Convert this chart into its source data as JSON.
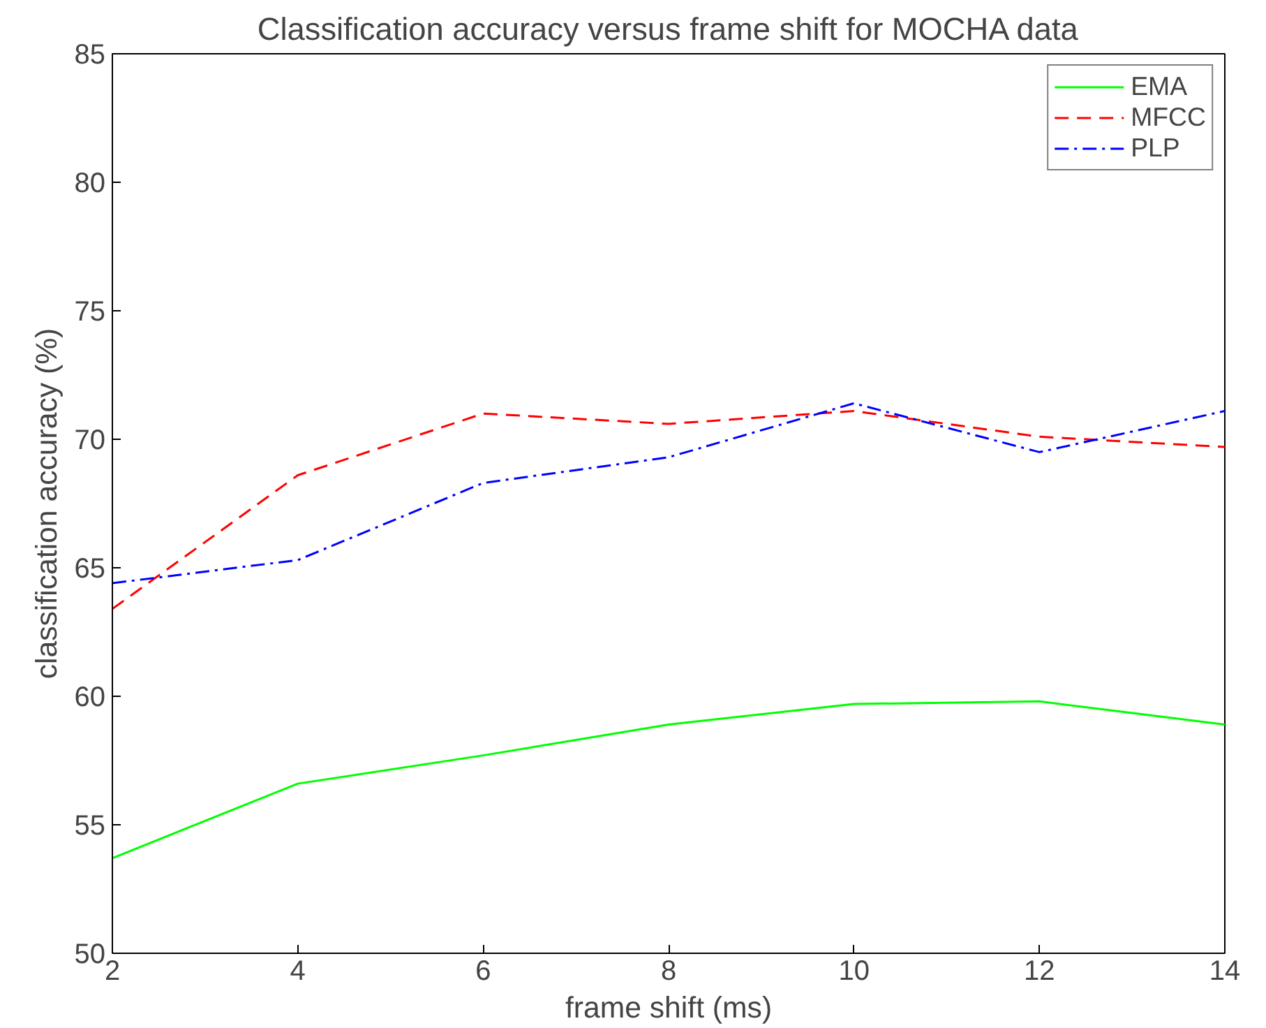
{
  "chart_data": {
    "type": "line",
    "title": "Classification accuracy versus frame shift for MOCHA data",
    "xlabel": "frame shift (ms)",
    "ylabel": "classification accuracy (%)",
    "x": [
      2,
      4,
      6,
      8,
      10,
      12,
      14
    ],
    "series": [
      {
        "name": "EMA",
        "color": "#00ff00",
        "line_style": "solid",
        "values": [
          53.7,
          56.6,
          57.7,
          58.9,
          59.7,
          59.8,
          58.9
        ]
      },
      {
        "name": "MFCC",
        "color": "#ff0000",
        "line_style": "dashed",
        "values": [
          63.4,
          68.6,
          71.0,
          70.6,
          71.1,
          70.1,
          69.7
        ]
      },
      {
        "name": "PLP",
        "color": "#0000ff",
        "line_style": "dashdot",
        "values": [
          64.4,
          65.3,
          68.3,
          69.3,
          71.4,
          69.5,
          71.1
        ]
      }
    ],
    "xlim": [
      2,
      14
    ],
    "xticks": [
      2,
      4,
      6,
      8,
      10,
      12,
      14
    ],
    "ylim": [
      50,
      85
    ],
    "yticks": [
      50,
      55,
      60,
      65,
      70,
      75,
      80,
      85
    ],
    "grid": false,
    "legend": "top right",
    "marker": "none"
  }
}
